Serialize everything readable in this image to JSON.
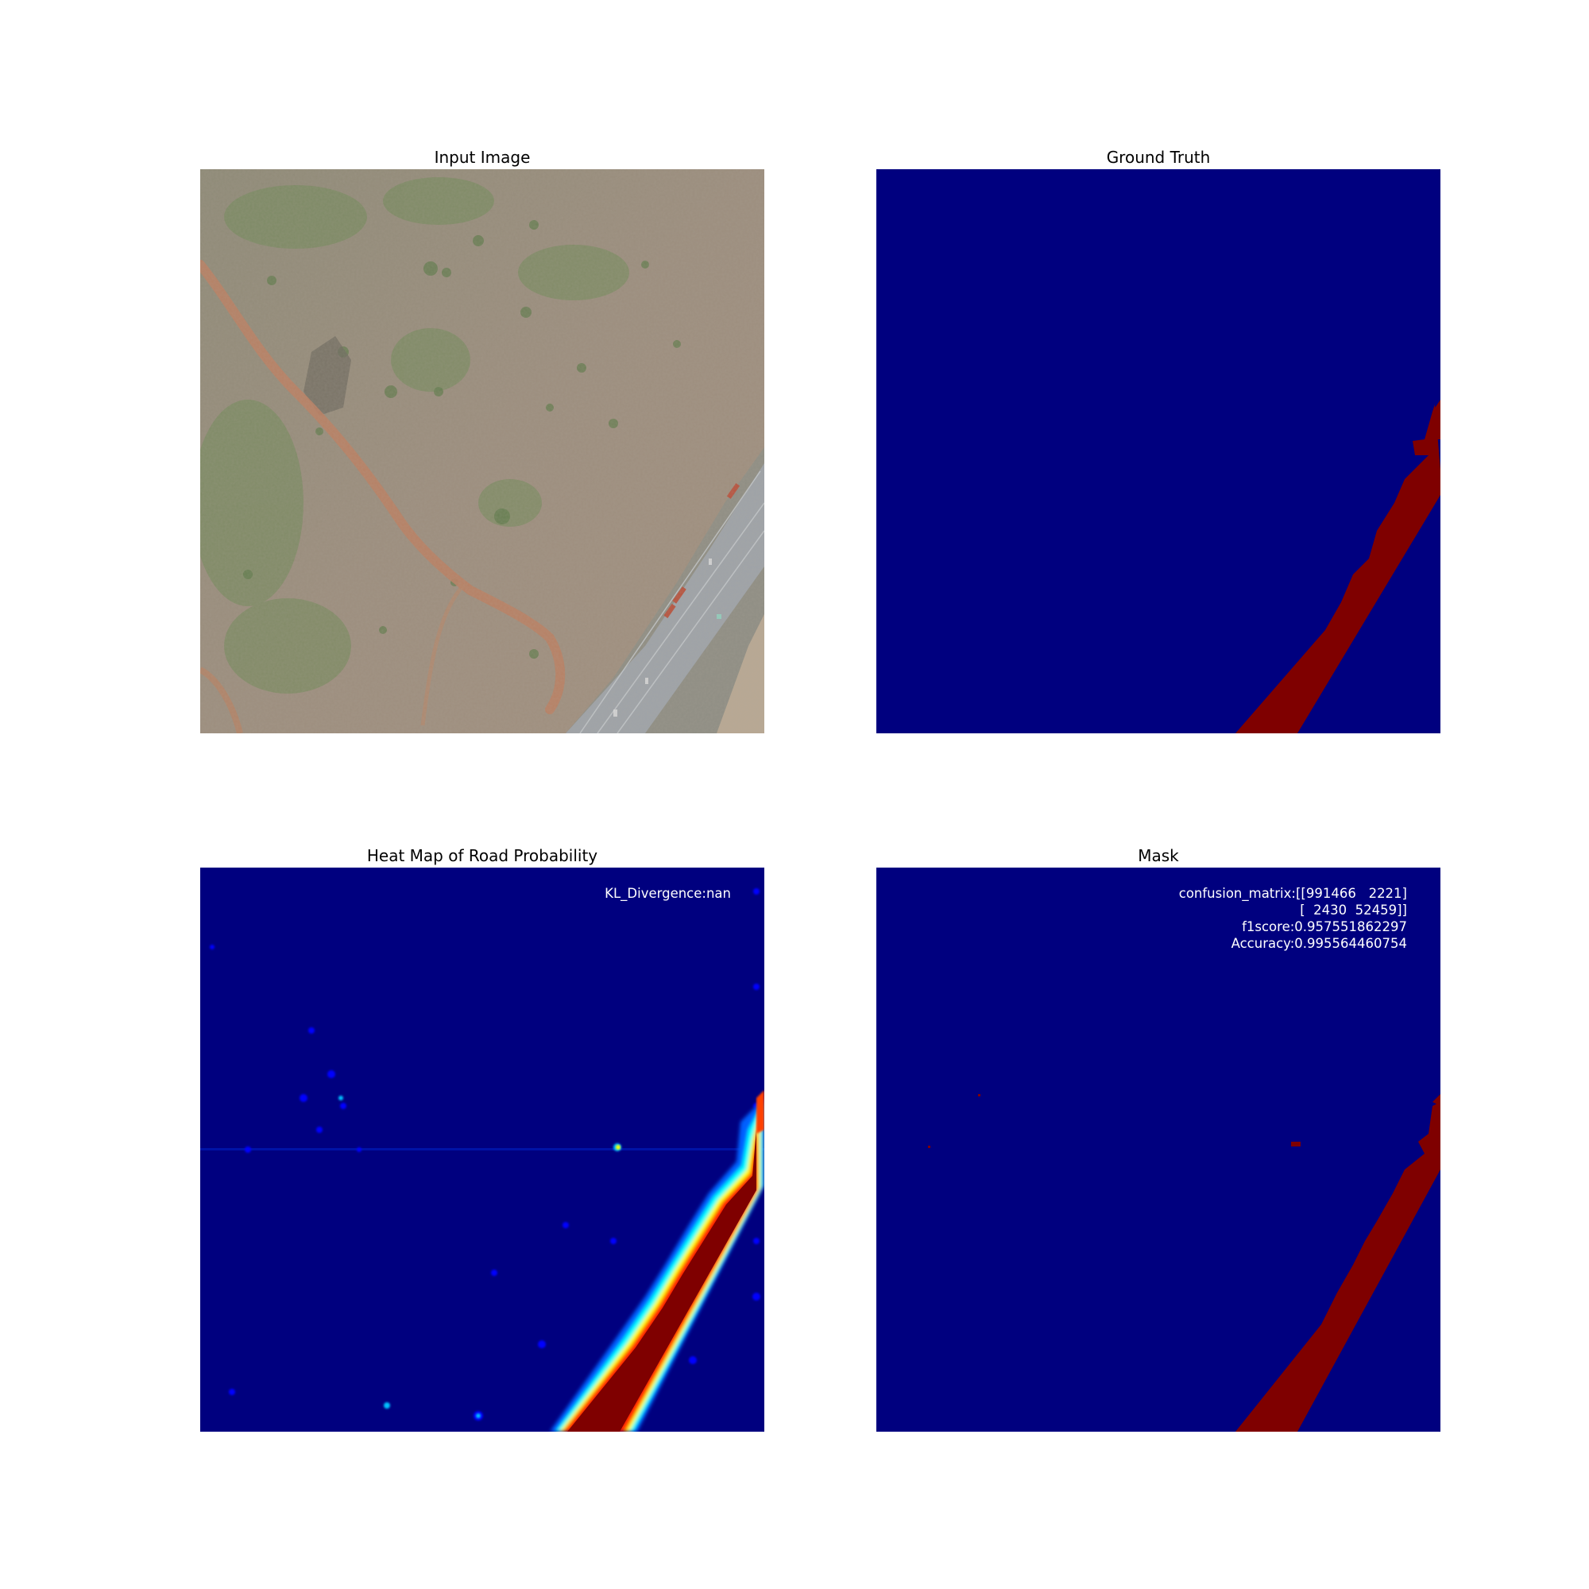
{
  "figure": {
    "panels": [
      {
        "title": "Input Image",
        "content": "aerial-photo"
      },
      {
        "title": "Ground Truth",
        "content": "road-mask"
      },
      {
        "title": "Heat Map of Road Probability",
        "content": "probability-heatmap"
      },
      {
        "title": "Mask",
        "content": "predicted-mask"
      }
    ],
    "heatmap_annotation": {
      "kl_divergence": "KL_Divergence:nan"
    },
    "mask_annotation": {
      "confusion_line1": "confusion_matrix:[[991466   2221]",
      "confusion_line2": "[  2430  52459]]",
      "f1score": "f1score:0.957551862297",
      "accuracy": "Accuracy:0.995564460754"
    }
  },
  "colors": {
    "background_class": "#00007f",
    "road_class": "#7f0000",
    "terrain": "#958b7b",
    "vegetation": "#6f8a57",
    "dirt_road": "#b98063",
    "highway": "#9ea3a8"
  },
  "confusion_matrix": [
    [
      991466,
      2221
    ],
    [
      2430,
      52459
    ]
  ],
  "metrics": {
    "f1score": 0.957551862297,
    "accuracy": 0.995564460754
  }
}
